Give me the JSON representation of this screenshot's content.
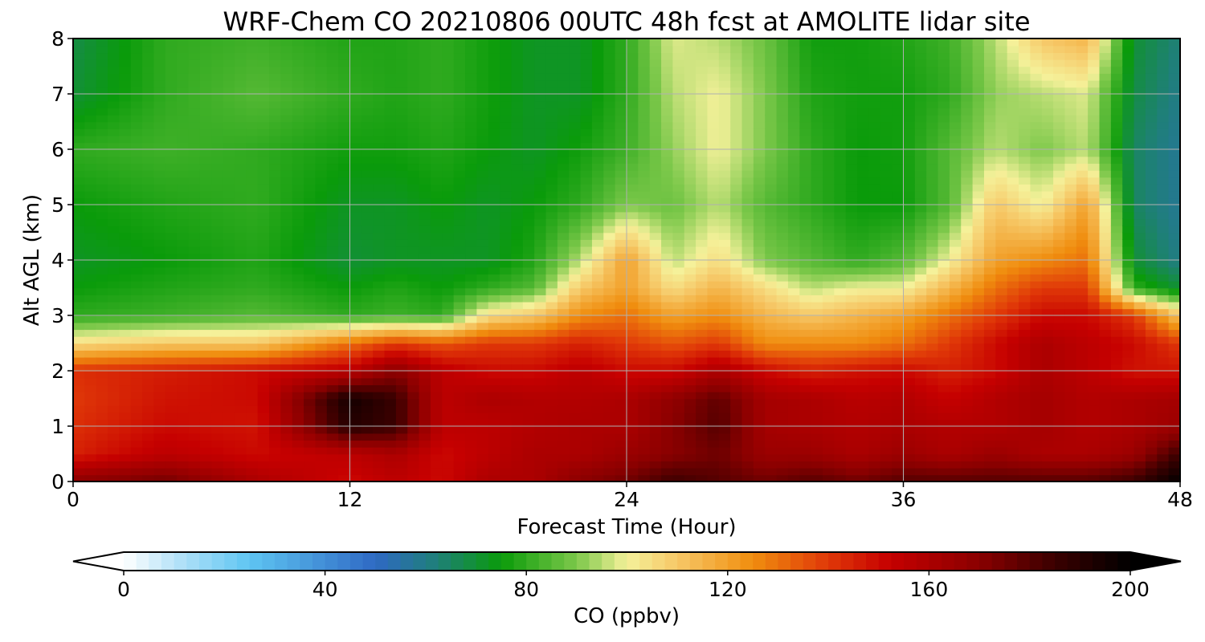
{
  "chart_data": {
    "type": "heatmap",
    "title": "WRF-Chem CO  20210806 00UTC 48h fcst at AMOLITE lidar site",
    "xlabel": "Forecast Time (Hour)",
    "ylabel": "Alt AGL (km)",
    "xlim": [
      0,
      48
    ],
    "ylim": [
      0,
      8
    ],
    "xticks": [
      "0",
      "12",
      "24",
      "36",
      "48"
    ],
    "yticks": [
      "0",
      "1",
      "2",
      "3",
      "4",
      "5",
      "6",
      "7",
      "8"
    ],
    "grid": true,
    "colorbar": {
      "label": "CO  (ppbv)",
      "range": [
        0,
        200
      ],
      "ticks": [
        "0",
        "40",
        "80",
        "120",
        "160",
        "200"
      ],
      "extend": "both",
      "stops": [
        {
          "value": 0,
          "color": "#ffffff"
        },
        {
          "value": 10,
          "color": "#b9e4f8"
        },
        {
          "value": 25,
          "color": "#5ec5f2"
        },
        {
          "value": 50,
          "color": "#2f69c4"
        },
        {
          "value": 62,
          "color": "#1f7f7a"
        },
        {
          "value": 75,
          "color": "#0a9b0a"
        },
        {
          "value": 90,
          "color": "#7cc84a"
        },
        {
          "value": 100,
          "color": "#f5f19a"
        },
        {
          "value": 110,
          "color": "#f6c867"
        },
        {
          "value": 125,
          "color": "#f08d0e"
        },
        {
          "value": 140,
          "color": "#e03808"
        },
        {
          "value": 152,
          "color": "#c60000"
        },
        {
          "value": 170,
          "color": "#8a0000"
        },
        {
          "value": 185,
          "color": "#3a0000"
        },
        {
          "value": 200,
          "color": "#000000"
        }
      ]
    },
    "x": [
      0,
      4,
      8,
      12,
      14,
      16,
      18,
      20,
      22,
      24,
      26,
      28,
      30,
      32,
      34,
      36,
      38,
      40,
      42,
      44,
      46,
      48
    ],
    "y": [
      0,
      0.5,
      1,
      1.5,
      2,
      2.5,
      3,
      3.5,
      4,
      5,
      6,
      7,
      8
    ],
    "z": [
      [
        170,
        175,
        160,
        150,
        155,
        150,
        160,
        160,
        170,
        175,
        185,
        180,
        175,
        180,
        175,
        180,
        180,
        180,
        180,
        180,
        185,
        200
      ],
      [
        145,
        155,
        150,
        155,
        160,
        150,
        155,
        160,
        160,
        165,
        170,
        175,
        165,
        165,
        160,
        165,
        160,
        165,
        160,
        160,
        165,
        185
      ],
      [
        142,
        150,
        148,
        190,
        185,
        155,
        155,
        158,
        160,
        160,
        170,
        180,
        162,
        160,
        158,
        160,
        158,
        158,
        162,
        158,
        160,
        165
      ],
      [
        140,
        148,
        150,
        195,
        185,
        155,
        160,
        158,
        158,
        160,
        168,
        178,
        162,
        160,
        156,
        158,
        152,
        158,
        162,
        158,
        160,
        162
      ],
      [
        142,
        146,
        150,
        155,
        170,
        155,
        150,
        150,
        155,
        150,
        150,
        160,
        150,
        145,
        148,
        150,
        145,
        150,
        160,
        155,
        148,
        148
      ],
      [
        105,
        110,
        110,
        130,
        140,
        135,
        140,
        140,
        145,
        140,
        135,
        140,
        125,
        125,
        125,
        130,
        140,
        150,
        160,
        155,
        150,
        140
      ],
      [
        80,
        82,
        85,
        80,
        82,
        80,
        105,
        110,
        125,
        130,
        120,
        125,
        115,
        110,
        115,
        120,
        130,
        140,
        150,
        150,
        140,
        110
      ],
      [
        75,
        78,
        80,
        75,
        78,
        75,
        80,
        85,
        110,
        120,
        105,
        115,
        105,
        95,
        100,
        100,
        115,
        130,
        140,
        140,
        80,
        70
      ],
      [
        72,
        75,
        78,
        70,
        72,
        72,
        72,
        78,
        95,
        120,
        95,
        105,
        90,
        85,
        80,
        85,
        100,
        120,
        125,
        130,
        70,
        60
      ],
      [
        75,
        78,
        80,
        72,
        72,
        75,
        72,
        75,
        80,
        90,
        88,
        95,
        85,
        80,
        75,
        75,
        85,
        110,
        100,
        120,
        65,
        58
      ],
      [
        80,
        82,
        80,
        76,
        76,
        78,
        75,
        72,
        76,
        82,
        92,
        100,
        90,
        80,
        75,
        76,
        85,
        95,
        90,
        95,
        65,
        58
      ],
      [
        70,
        80,
        85,
        80,
        78,
        80,
        76,
        72,
        72,
        80,
        95,
        100,
        90,
        78,
        76,
        76,
        80,
        92,
        95,
        98,
        68,
        60
      ],
      [
        68,
        80,
        82,
        78,
        78,
        80,
        76,
        72,
        72,
        80,
        98,
        95,
        88,
        76,
        76,
        78,
        82,
        95,
        110,
        115,
        70,
        62
      ]
    ]
  }
}
